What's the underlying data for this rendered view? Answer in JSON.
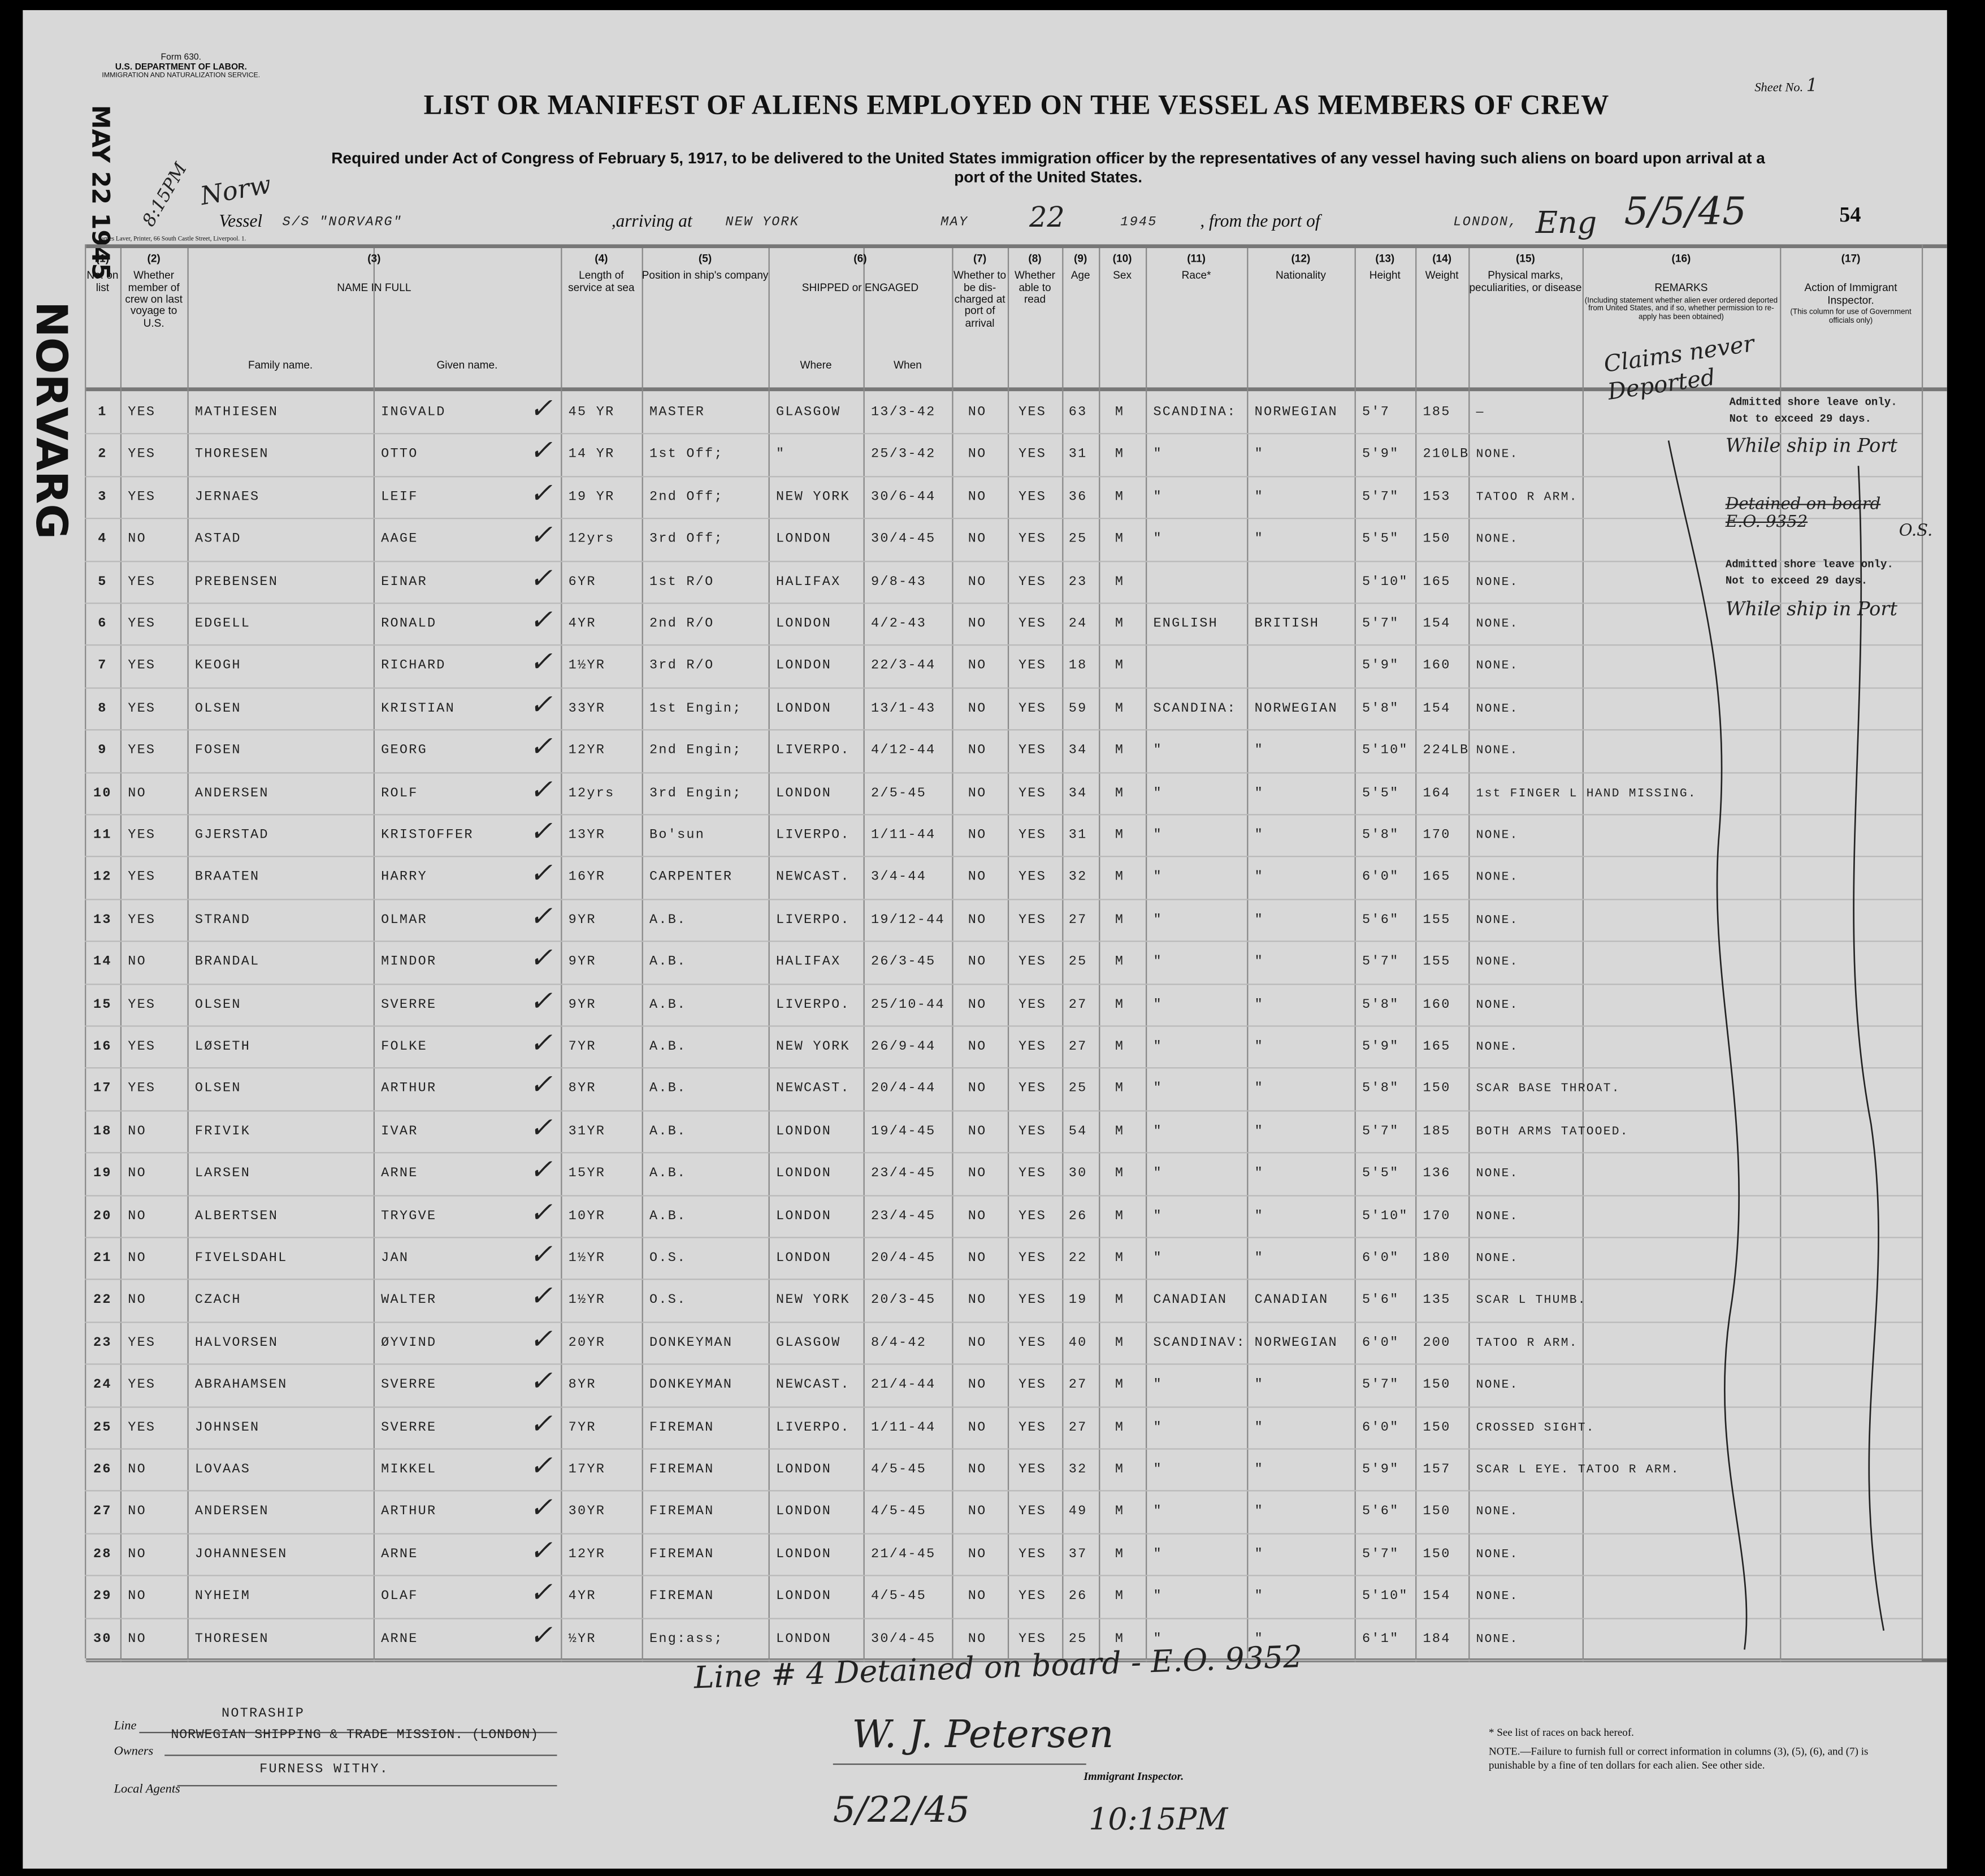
{
  "form": {
    "form_no": "Form 630.",
    "department": "U.S. DEPARTMENT OF LABOR.",
    "service": "IMMIGRATION AND NATURALIZATION SERVICE.",
    "sheet_label": "Sheet No.",
    "sheet_no": "1",
    "title": "LIST OR MANIFEST OF ALIENS EMPLOYED ON THE VESSEL AS MEMBERS OF CREW",
    "subtitle": "Required under Act of Congress of February 5, 1917, to be delivered to the United States immigration officer by the representatives of any vessel having such aliens on board upon arrival at a port of the United States.",
    "printer": "James Laver, Printer, 66 South Castle Street, Liverpool. 1."
  },
  "vessel": {
    "label": "Vessel",
    "name": "S/S \"NORVARG\"",
    "arriving_label": ",arriving at",
    "port": "NEW YORK",
    "month": "MAY",
    "day": "22",
    "year": "1945",
    "from_label": ", from the port of",
    "from_port": "LONDON,",
    "from_hand": "Eng",
    "date_hand": "5/5/45",
    "page_no": "54",
    "time_hand": "8:15PM",
    "nat_hand": "Norw"
  },
  "stamp": {
    "date": "MAY 22 1945",
    "ship": "NORVARG"
  },
  "columns": [
    {
      "no": "(1)",
      "label": "No. on list"
    },
    {
      "no": "(2)",
      "label": "Whether member of crew on last voyage to U.S."
    },
    {
      "no": "(3)",
      "label": "NAME IN FULL",
      "sub": [
        "Family name.",
        "Given name."
      ]
    },
    {
      "no": "(4)",
      "label": "Length of service at sea"
    },
    {
      "no": "(5)",
      "label": "Position in ship's company"
    },
    {
      "no": "(6)",
      "label": "SHIPPED or ENGAGED",
      "sub": [
        "Where",
        "When"
      ]
    },
    {
      "no": "(7)",
      "label": "Whether to be dis-charged at port of arrival"
    },
    {
      "no": "(8)",
      "label": "Whether able to read"
    },
    {
      "no": "(9)",
      "label": "Age"
    },
    {
      "no": "(10)",
      "label": "Sex"
    },
    {
      "no": "(11)",
      "label": "Race*"
    },
    {
      "no": "(12)",
      "label": "Nationality"
    },
    {
      "no": "(13)",
      "label": "Height"
    },
    {
      "no": "(14)",
      "label": "Weight"
    },
    {
      "no": "(15)",
      "label": "Physical marks, peculiarities, or disease"
    },
    {
      "no": "(16)",
      "label": "REMARKS",
      "note": "(Including statement whether alien ever ordered deported from United States, and if so, whether permission to re-apply has been obtained)"
    },
    {
      "no": "(17)",
      "label": "Action of Immigrant Inspector.",
      "note": "(This column for use of Government officials only)"
    }
  ],
  "rows": [
    [
      "1",
      "YES",
      "MATHIESEN",
      "INGVALD",
      "45 YR",
      "MASTER",
      "GLASGOW",
      "13/3-42",
      "NO",
      "YES",
      "63",
      "M",
      "SCANDINA:",
      "NORWEGIAN",
      "5'7",
      "185",
      "—"
    ],
    [
      "2",
      "YES",
      "THORESEN",
      "OTTO",
      "14 YR",
      "1st Off;",
      "\"",
      "25/3-42",
      "NO",
      "YES",
      "31",
      "M",
      "\"",
      "\"",
      "5'9\"",
      "210LB",
      "NONE."
    ],
    [
      "3",
      "YES",
      "JERNAES",
      "LEIF",
      "19 YR",
      "2nd Off;",
      "NEW YORK",
      "30/6-44",
      "NO",
      "YES",
      "36",
      "M",
      "\"",
      "\"",
      "5'7\"",
      "153",
      "TATOO R ARM."
    ],
    [
      "4",
      "NO",
      "ASTAD",
      "AAGE",
      "12yrs",
      "3rd Off;",
      "LONDON",
      "30/4-45",
      "NO",
      "YES",
      "25",
      "M",
      "\"",
      "\"",
      "5'5\"",
      "150",
      "NONE."
    ],
    [
      "5",
      "YES",
      "PREBENSEN",
      "EINAR",
      "6YR",
      "1st R/O",
      "HALIFAX",
      "9/8-43",
      "NO",
      "YES",
      "23",
      "M",
      "",
      "",
      "5'10\"",
      "165",
      "NONE."
    ],
    [
      "6",
      "YES",
      "EDGELL",
      "RONALD",
      "4YR",
      "2nd R/O",
      "LONDON",
      "4/2-43",
      "NO",
      "YES",
      "24",
      "M",
      "ENGLISH",
      "BRITISH",
      "5'7\"",
      "154",
      "NONE."
    ],
    [
      "7",
      "YES",
      "KEOGH",
      "RICHARD",
      "1½YR",
      "3rd R/O",
      "LONDON",
      "22/3-44",
      "NO",
      "YES",
      "18",
      "M",
      "",
      "",
      "5'9\"",
      "160",
      "NONE."
    ],
    [
      "8",
      "YES",
      "OLSEN",
      "KRISTIAN",
      "33YR",
      "1st Engin;",
      "LONDON",
      "13/1-43",
      "NO",
      "YES",
      "59",
      "M",
      "SCANDINA:",
      "NORWEGIAN",
      "5'8\"",
      "154",
      "NONE."
    ],
    [
      "9",
      "YES",
      "FOSEN",
      "GEORG",
      "12YR",
      "2nd Engin;",
      "LIVERPO.",
      "4/12-44",
      "NO",
      "YES",
      "34",
      "M",
      "\"",
      "\"",
      "5'10\"",
      "224LB",
      "NONE."
    ],
    [
      "10",
      "NO",
      "ANDERSEN",
      "ROLF",
      "12yrs",
      "3rd Engin;",
      "LONDON",
      "2/5-45",
      "NO",
      "YES",
      "34",
      "M",
      "\"",
      "\"",
      "5'5\"",
      "164",
      "1st FINGER L HAND MISSING."
    ],
    [
      "11",
      "YES",
      "GJERSTAD",
      "KRISTOFFER",
      "13YR",
      "Bo'sun",
      "LIVERPO.",
      "1/11-44",
      "NO",
      "YES",
      "31",
      "M",
      "\"",
      "\"",
      "5'8\"",
      "170",
      "NONE."
    ],
    [
      "12",
      "YES",
      "BRAATEN",
      "HARRY",
      "16YR",
      "CARPENTER",
      "NEWCAST.",
      "3/4-44",
      "NO",
      "YES",
      "32",
      "M",
      "\"",
      "\"",
      "6'0\"",
      "165",
      "NONE."
    ],
    [
      "13",
      "YES",
      "STRAND",
      "OLMAR",
      "9YR",
      "A.B.",
      "LIVERPO.",
      "19/12-44",
      "NO",
      "YES",
      "27",
      "M",
      "\"",
      "\"",
      "5'6\"",
      "155",
      "NONE."
    ],
    [
      "14",
      "NO",
      "BRANDAL",
      "MINDOR",
      "9YR",
      "A.B.",
      "HALIFAX",
      "26/3-45",
      "NO",
      "YES",
      "25",
      "M",
      "\"",
      "\"",
      "5'7\"",
      "155",
      "NONE."
    ],
    [
      "15",
      "YES",
      "OLSEN",
      "SVERRE",
      "9YR",
      "A.B.",
      "LIVERPO.",
      "25/10-44",
      "NO",
      "YES",
      "27",
      "M",
      "\"",
      "\"",
      "5'8\"",
      "160",
      "NONE."
    ],
    [
      "16",
      "YES",
      "LØSETH",
      "FOLKE",
      "7YR",
      "A.B.",
      "NEW YORK",
      "26/9-44",
      "NO",
      "YES",
      "27",
      "M",
      "\"",
      "\"",
      "5'9\"",
      "165",
      "NONE."
    ],
    [
      "17",
      "YES",
      "OLSEN",
      "ARTHUR",
      "8YR",
      "A.B.",
      "NEWCAST.",
      "20/4-44",
      "NO",
      "YES",
      "25",
      "M",
      "\"",
      "\"",
      "5'8\"",
      "150",
      "SCAR BASE THROAT."
    ],
    [
      "18",
      "NO",
      "FRIVIK",
      "IVAR",
      "31YR",
      "A.B.",
      "LONDON",
      "19/4-45",
      "NO",
      "YES",
      "54",
      "M",
      "\"",
      "\"",
      "5'7\"",
      "185",
      "BOTH ARMS TATOOED."
    ],
    [
      "19",
      "NO",
      "LARSEN",
      "ARNE",
      "15YR",
      "A.B.",
      "LONDON",
      "23/4-45",
      "NO",
      "YES",
      "30",
      "M",
      "\"",
      "\"",
      "5'5\"",
      "136",
      "NONE."
    ],
    [
      "20",
      "NO",
      "ALBERTSEN",
      "TRYGVE",
      "10YR",
      "A.B.",
      "LONDON",
      "23/4-45",
      "NO",
      "YES",
      "26",
      "M",
      "\"",
      "\"",
      "5'10\"",
      "170",
      "NONE."
    ],
    [
      "21",
      "NO",
      "FIVELSDAHL",
      "JAN",
      "1½YR",
      "O.S.",
      "LONDON",
      "20/4-45",
      "NO",
      "YES",
      "22",
      "M",
      "\"",
      "\"",
      "6'0\"",
      "180",
      "NONE."
    ],
    [
      "22",
      "NO",
      "CZACH",
      "WALTER",
      "1½YR",
      "O.S.",
      "NEW YORK",
      "20/3-45",
      "NO",
      "YES",
      "19",
      "M",
      "CANADIAN",
      "CANADIAN",
      "5'6\"",
      "135",
      "SCAR L THUMB."
    ],
    [
      "23",
      "YES",
      "HALVORSEN",
      "ØYVIND",
      "20YR",
      "DONKEYMAN",
      "GLASGOW",
      "8/4-42",
      "NO",
      "YES",
      "40",
      "M",
      "SCANDINAV:",
      "NORWEGIAN",
      "6'0\"",
      "200",
      "TATOO R ARM."
    ],
    [
      "24",
      "YES",
      "ABRAHAMSEN",
      "SVERRE",
      "8YR",
      "DONKEYMAN",
      "NEWCAST.",
      "21/4-44",
      "NO",
      "YES",
      "27",
      "M",
      "\"",
      "\"",
      "5'7\"",
      "150",
      "NONE."
    ],
    [
      "25",
      "YES",
      "JOHNSEN",
      "SVERRE",
      "7YR",
      "FIREMAN",
      "LIVERPO.",
      "1/11-44",
      "NO",
      "YES",
      "27",
      "M",
      "\"",
      "\"",
      "6'0\"",
      "150",
      "CROSSED SIGHT."
    ],
    [
      "26",
      "NO",
      "LOVAAS",
      "MIKKEL",
      "17YR",
      "FIREMAN",
      "LONDON",
      "4/5-45",
      "NO",
      "YES",
      "32",
      "M",
      "\"",
      "\"",
      "5'9\"",
      "157",
      "SCAR L EYE. TATOO R ARM."
    ],
    [
      "27",
      "NO",
      "ANDERSEN",
      "ARTHUR",
      "30YR",
      "FIREMAN",
      "LONDON",
      "4/5-45",
      "NO",
      "YES",
      "49",
      "M",
      "\"",
      "\"",
      "5'6\"",
      "150",
      "NONE."
    ],
    [
      "28",
      "NO",
      "JOHANNESEN",
      "ARNE",
      "12YR",
      "FIREMAN",
      "LONDON",
      "21/4-45",
      "NO",
      "YES",
      "37",
      "M",
      "\"",
      "\"",
      "5'7\"",
      "150",
      "NONE."
    ],
    [
      "29",
      "NO",
      "NYHEIM",
      "OLAF",
      "4YR",
      "FIREMAN",
      "LONDON",
      "4/5-45",
      "NO",
      "YES",
      "26",
      "M",
      "\"",
      "\"",
      "5'10\"",
      "154",
      "NONE."
    ],
    [
      "30",
      "NO",
      "THORESEN",
      "ARNE",
      "½YR",
      "Eng:ass;",
      "LONDON",
      "30/4-45",
      "NO",
      "YES",
      "25",
      "M",
      "\"",
      "\"",
      "6'1\"",
      "184",
      "NONE."
    ]
  ],
  "remarks": {
    "hand": "Claims never Deported",
    "typed1a": "Admitted shore leave only.",
    "typed1b": "Not to exceed 29 days.",
    "hand1": "While ship in Port",
    "struck": "Detained on board E.O. 9352",
    "initials": "O.S.",
    "typed2a": "Admitted shore leave only.",
    "typed2b": "Not to exceed 29 days.",
    "hand2": "While ship in Port"
  },
  "footer": {
    "detained_note": "Line # 4 Detained on board - E.O. 9352",
    "line_label": "Line",
    "line": "NOTRASHIP",
    "owners_label": "Owners",
    "owners": "NORWEGIAN SHIPPING & TRADE MISSION. (LONDON)",
    "agents_label": "Local Agents",
    "agents": "FURNESS WITHY.",
    "signature": "W. J. Petersen",
    "inspector_label": "Immigrant Inspector.",
    "date_hand": "5/22/45",
    "time_hand": "10:15PM",
    "races_note": "* See list of races on back hereof.",
    "note": "NOTE.—Failure to furnish full or correct information in columns (3), (5), (6), and (7) is punishable by a fine of ten dollars for each alien. See other side."
  }
}
